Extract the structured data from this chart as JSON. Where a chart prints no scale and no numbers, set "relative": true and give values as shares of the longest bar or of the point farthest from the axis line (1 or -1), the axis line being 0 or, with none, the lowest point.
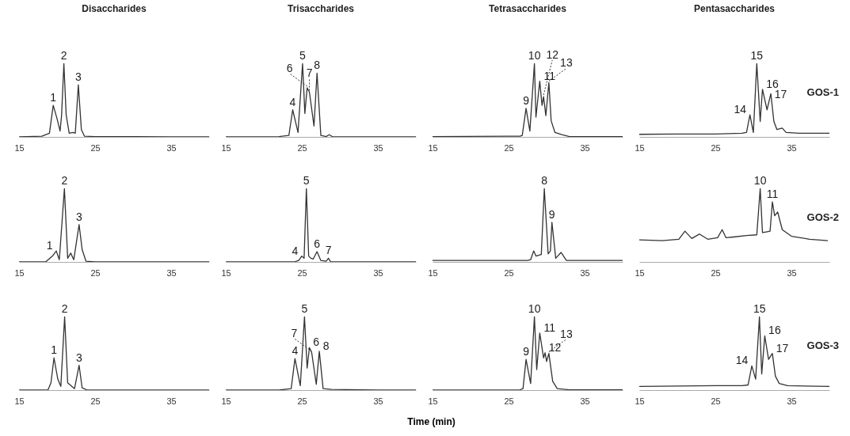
{
  "chart_data": [
    {
      "type": "line",
      "title": "Disaccharides",
      "relative": true,
      "xlim": [
        15,
        40
      ],
      "xticks": [
        15,
        25,
        35
      ],
      "x": [
        15,
        18,
        19,
        19.5,
        20,
        20.4,
        20.6,
        20.9,
        21.2,
        21.6,
        22.1,
        22.4,
        22.8,
        23.2,
        23.6,
        25,
        30,
        35,
        40
      ],
      "series": [
        {
          "color": "#333333",
          "values": [
            0,
            0.01,
            0.05,
            0.43,
            0.25,
            0.08,
            0.3,
            1,
            0.3,
            0.05,
            0.06,
            0.05,
            0.71,
            0.1,
            0.01,
            0.005,
            0.005,
            0,
            0
          ]
        }
      ],
      "annotations": [
        {
          "text": "1",
          "x": 19.5,
          "y": 0.43
        },
        {
          "text": "2",
          "x": 20.9,
          "y": 1
        },
        {
          "text": "3",
          "x": 22.8,
          "y": 0.71
        }
      ]
    },
    {
      "type": "line",
      "title": "Trisaccharides",
      "relative": true,
      "xlim": [
        15,
        40
      ],
      "xticks": [
        15,
        25,
        35
      ],
      "x": [
        15,
        22,
        23.3,
        23.8,
        24.5,
        25.1,
        25.4,
        25.7,
        26.0,
        26.6,
        27.0,
        27.5,
        28.2,
        28.6,
        29,
        35,
        40
      ],
      "series": [
        {
          "color": "#333333",
          "values": [
            0,
            0.005,
            0.02,
            0.37,
            0.06,
            1,
            0.32,
            0.67,
            0.61,
            0.15,
            0.87,
            0.02,
            0.005,
            0.03,
            0.005,
            0,
            0
          ]
        }
      ],
      "annotations": [
        {
          "text": "4",
          "x": 23.8,
          "y": 0.37
        },
        {
          "text": "5",
          "x": 25.1,
          "y": 1
        },
        {
          "text": "6",
          "x": 25.7,
          "y": 0.67
        },
        {
          "text": "7",
          "x": 26.0,
          "y": 0.61
        },
        {
          "text": "8",
          "x": 27.0,
          "y": 0.87
        }
      ]
    },
    {
      "type": "line",
      "title": "Tetrasaccharides",
      "relative": true,
      "xlim": [
        15,
        40
      ],
      "xticks": [
        15,
        25,
        35
      ],
      "x": [
        15,
        25,
        26.5,
        26.8,
        27.3,
        27.8,
        28.4,
        28.6,
        29.1,
        29.4,
        29.6,
        29.9,
        30.3,
        30.6,
        31.1,
        32.0,
        33,
        40
      ],
      "series": [
        {
          "color": "#333333",
          "values": [
            0.005,
            0.01,
            0.01,
            0.02,
            0.39,
            0.08,
            1,
            0.27,
            0.76,
            0.43,
            0.55,
            0.29,
            0.74,
            0.22,
            0.06,
            0.03,
            0.005,
            0.005
          ]
        }
      ],
      "annotations": [
        {
          "text": "9",
          "x": 27.3,
          "y": 0.39
        },
        {
          "text": "10",
          "x": 28.4,
          "y": 1
        },
        {
          "text": "11",
          "x": 29.1,
          "y": 0.76
        },
        {
          "text": "12",
          "x": 29.6,
          "y": 0.55
        },
        {
          "text": "13",
          "x": 30.3,
          "y": 0.74
        }
      ]
    },
    {
      "type": "line",
      "title": "Pentasaccharides",
      "relative": true,
      "xlim": [
        15,
        40
      ],
      "xticks": [
        15,
        25,
        35
      ],
      "x": [
        15,
        20,
        25,
        28.5,
        29.1,
        29.55,
        30.0,
        30.45,
        30.9,
        31.2,
        31.8,
        32.3,
        32.7,
        33.1,
        33.8,
        34.3,
        36,
        40
      ],
      "series": [
        {
          "color": "#333333",
          "values": [
            0.035,
            0.04,
            0.04,
            0.05,
            0.06,
            0.3,
            0.06,
            1,
            0.21,
            0.65,
            0.37,
            0.59,
            0.21,
            0.1,
            0.12,
            0.06,
            0.05,
            0.05
          ]
        }
      ],
      "annotations": [
        "GOS-1",
        {
          "text": "14",
          "x": 29.55,
          "y": 0.3
        },
        {
          "text": "15",
          "x": 30.45,
          "y": 1
        },
        {
          "text": "16",
          "x": 31.2,
          "y": 0.65
        },
        {
          "text": "17",
          "x": 32.3,
          "y": 0.59
        }
      ]
    },
    {
      "type": "line",
      "relative": true,
      "xlim": [
        15,
        40
      ],
      "xticks": [
        15,
        25,
        35
      ],
      "x": [
        15,
        18.5,
        19.4,
        19.9,
        20.3,
        20.97,
        21.4,
        21.8,
        22.2,
        22.9,
        23.3,
        23.8,
        25,
        30,
        40
      ],
      "series": [
        {
          "color": "#333333",
          "values": [
            0,
            0,
            0.08,
            0.15,
            0.03,
            1,
            0.05,
            0.12,
            0.03,
            0.51,
            0.17,
            0.01,
            0,
            0,
            0
          ]
        }
      ],
      "annotations": [
        {
          "text": "1",
          "x": 19.9,
          "y": 0.15
        },
        {
          "text": "2",
          "x": 20.97,
          "y": 1
        },
        {
          "text": "3",
          "x": 22.9,
          "y": 0.51
        }
      ]
    },
    {
      "type": "line",
      "relative": true,
      "xlim": [
        15,
        40
      ],
      "xticks": [
        15,
        25,
        35
      ],
      "x": [
        15,
        24,
        24.6,
        25.0,
        25.3,
        25.6,
        25.9,
        26.2,
        26.5,
        27.0,
        27.5,
        28.2,
        28.5,
        28.8,
        35,
        40
      ],
      "series": [
        {
          "color": "#333333",
          "values": [
            0,
            0,
            0.02,
            0.08,
            0.05,
            1,
            0.08,
            0.05,
            0.04,
            0.14,
            0.02,
            0.01,
            0.05,
            0,
            0,
            0
          ]
        }
      ],
      "annotations": [
        {
          "text": "4",
          "x": 25.0,
          "y": 0.08
        },
        {
          "text": "5",
          "x": 25.6,
          "y": 1
        },
        {
          "text": "6",
          "x": 27.0,
          "y": 0.14
        },
        {
          "text": "7",
          "x": 28.5,
          "y": 0.05
        }
      ]
    },
    {
      "type": "line",
      "relative": true,
      "xlim": [
        15,
        40
      ],
      "xticks": [
        15,
        25,
        35
      ],
      "x": [
        15,
        25,
        27.5,
        27.9,
        28.3,
        28.6,
        29.3,
        29.7,
        30.2,
        30.5,
        30.7,
        31.2,
        31.9,
        32.6,
        34,
        40
      ],
      "series": [
        {
          "color": "#333333",
          "values": [
            0.02,
            0.02,
            0.02,
            0.03,
            0.15,
            0.08,
            0.1,
            1,
            0.11,
            0.15,
            0.54,
            0.05,
            0.13,
            0.02,
            0.02,
            0.02
          ]
        }
      ],
      "annotations": [
        {
          "text": "8",
          "x": 29.7,
          "y": 1
        },
        {
          "text": "9",
          "x": 30.7,
          "y": 0.54
        }
      ]
    },
    {
      "type": "line",
      "relative": true,
      "xlim": [
        15,
        40
      ],
      "xticks": [
        15,
        25,
        35
      ],
      "x": [
        15,
        18,
        20.2,
        21.0,
        21.9,
        22.9,
        24.0,
        25.3,
        25.9,
        26.4,
        27.4,
        29.1,
        30.45,
        30.9,
        31.2,
        31.7,
        32.2,
        32.5,
        32.8,
        33.2,
        33.8,
        35.0,
        37.4,
        39.8
      ],
      "series": [
        {
          "color": "#333333",
          "values": [
            0.3,
            0.29,
            0.31,
            0.42,
            0.32,
            0.38,
            0.31,
            0.33,
            0.44,
            0.33,
            0.34,
            0.36,
            0.37,
            1,
            0.4,
            0.41,
            0.42,
            0.82,
            0.63,
            0.68,
            0.44,
            0.35,
            0.31,
            0.29
          ]
        }
      ],
      "annotations": [
        "GOS-2",
        {
          "text": "10",
          "x": 30.9,
          "y": 1
        },
        {
          "text": "11",
          "x": 32.5,
          "y": 0.82
        }
      ]
    },
    {
      "type": "line",
      "relative": true,
      "xlim": [
        15,
        40
      ],
      "xticks": [
        15,
        25,
        35
      ],
      "x": [
        15,
        18.8,
        19.2,
        19.6,
        20.1,
        20.5,
        21.0,
        21.4,
        21.85,
        22.3,
        22.9,
        23.3,
        24,
        30,
        40
      ],
      "series": [
        {
          "color": "#333333",
          "values": [
            0,
            0,
            0.1,
            0.44,
            0.15,
            0.05,
            1,
            0.1,
            0.06,
            0.02,
            0.34,
            0.03,
            0,
            0,
            0
          ]
        }
      ],
      "annotations": [
        {
          "text": "1",
          "x": 19.6,
          "y": 0.44
        },
        {
          "text": "2",
          "x": 21.0,
          "y": 1
        },
        {
          "text": "3",
          "x": 22.9,
          "y": 0.34
        }
      ]
    },
    {
      "type": "line",
      "relative": true,
      "xlabel": "Time (min)",
      "xlim": [
        15,
        40
      ],
      "xticks": [
        15,
        25,
        35
      ],
      "x": [
        15,
        22,
        23.6,
        24.1,
        24.8,
        25.35,
        25.7,
        26.0,
        26.3,
        26.9,
        27.3,
        27.8,
        28.9,
        35,
        40
      ],
      "series": [
        {
          "color": "#333333",
          "values": [
            0,
            0,
            0.02,
            0.43,
            0.06,
            1,
            0.3,
            0.58,
            0.51,
            0.08,
            0.53,
            0.02,
            0.01,
            0,
            0
          ]
        }
      ],
      "annotations": [
        {
          "text": "4",
          "x": 24.1,
          "y": 0.43
        },
        {
          "text": "5",
          "x": 25.35,
          "y": 1
        },
        {
          "text": "6",
          "x": 26.0,
          "y": 0.58
        },
        {
          "text": "7",
          "x": 26.3,
          "y": 0.51
        },
        {
          "text": "8",
          "x": 27.3,
          "y": 0.53
        }
      ]
    },
    {
      "type": "line",
      "relative": true,
      "xlim": [
        15,
        40
      ],
      "xticks": [
        15,
        25,
        35
      ],
      "x": [
        15,
        25,
        26.5,
        26.9,
        27.3,
        27.9,
        28.4,
        28.7,
        29.1,
        29.6,
        29.8,
        30.0,
        30.3,
        30.8,
        31.4,
        33,
        40
      ],
      "series": [
        {
          "color": "#333333",
          "values": [
            0,
            0,
            0.005,
            0.02,
            0.42,
            0.09,
            1,
            0.28,
            0.78,
            0.44,
            0.51,
            0.39,
            0.5,
            0.12,
            0.02,
            0.005,
            0.005
          ]
        }
      ],
      "annotations": [
        {
          "text": "9",
          "x": 27.3,
          "y": 0.42
        },
        {
          "text": "10",
          "x": 28.4,
          "y": 1
        },
        {
          "text": "11",
          "x": 29.1,
          "y": 0.78
        },
        {
          "text": "12",
          "x": 29.8,
          "y": 0.51
        },
        {
          "text": "13",
          "x": 30.3,
          "y": 0.5
        }
      ]
    },
    {
      "type": "line",
      "relative": true,
      "xlim": [
        15,
        40
      ],
      "xticks": [
        15,
        25,
        35
      ],
      "x": [
        15,
        20,
        25,
        28.5,
        29.3,
        29.8,
        30.3,
        30.8,
        31.1,
        31.5,
        32.0,
        32.5,
        32.9,
        33.4,
        34.5,
        40
      ],
      "series": [
        {
          "color": "#333333",
          "values": [
            0.05,
            0.055,
            0.06,
            0.06,
            0.07,
            0.33,
            0.15,
            1,
            0.22,
            0.74,
            0.42,
            0.5,
            0.19,
            0.09,
            0.06,
            0.05
          ]
        }
      ],
      "annotations": [
        "GOS-3",
        {
          "text": "14",
          "x": 29.8,
          "y": 0.33
        },
        {
          "text": "15",
          "x": 30.8,
          "y": 1
        },
        {
          "text": "16",
          "x": 31.5,
          "y": 0.74
        },
        {
          "text": "17",
          "x": 32.5,
          "y": 0.5
        }
      ]
    }
  ]
}
